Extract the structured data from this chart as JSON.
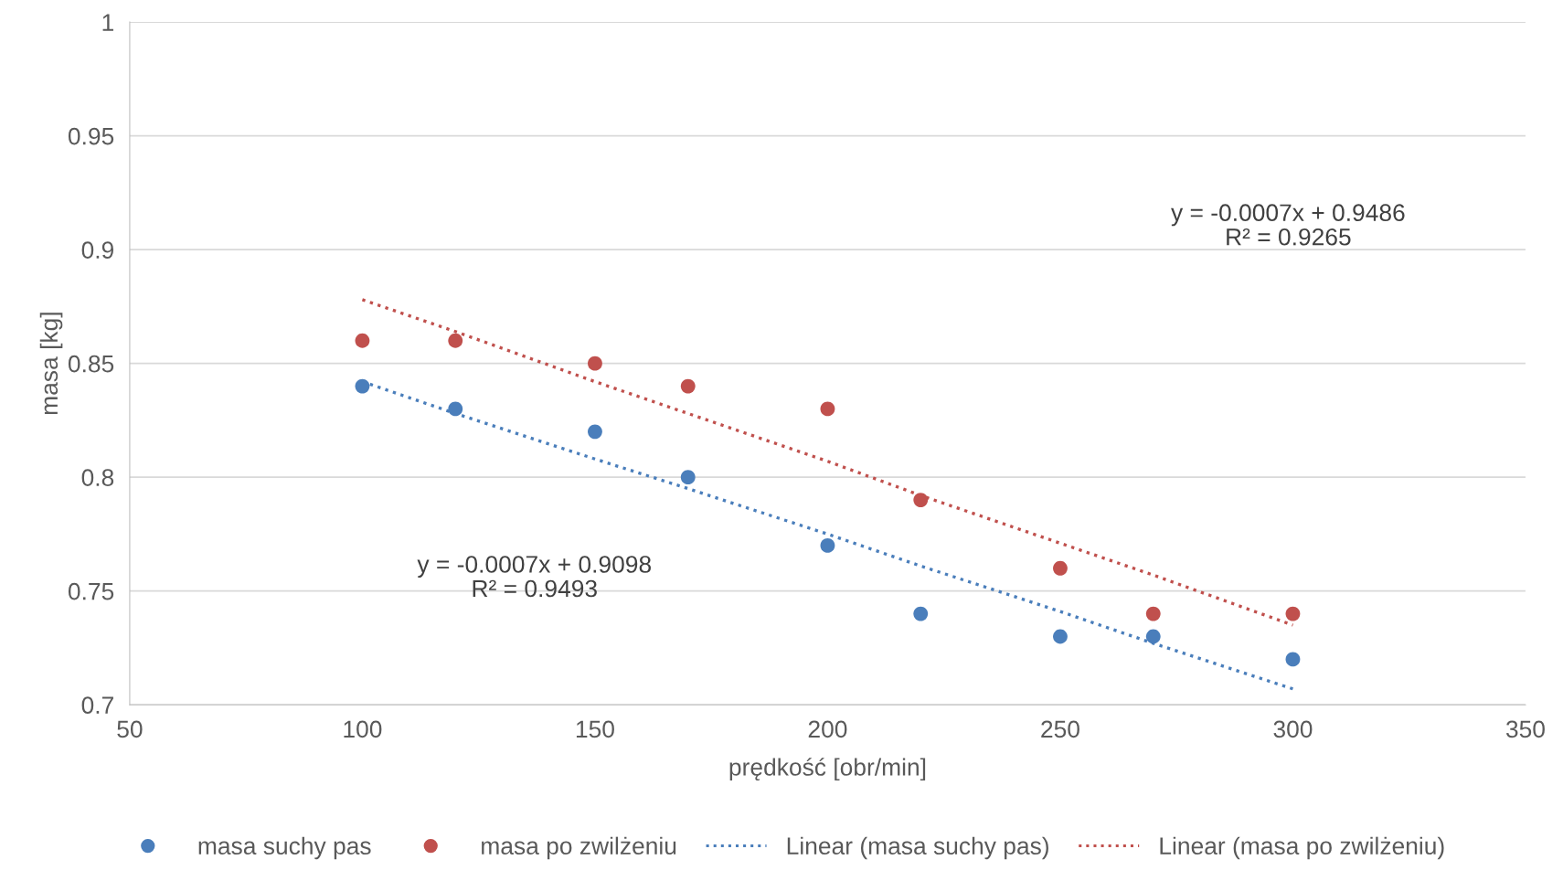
{
  "chart_data": {
    "type": "scatter",
    "xlabel": "prędkość [obr/min]",
    "ylabel": "masa [kg]",
    "x": [
      100,
      120,
      150,
      170,
      200,
      220,
      250,
      270,
      300
    ],
    "series": [
      {
        "name": "masa suchy pas",
        "color": "#4a7ebb",
        "values": [
          0.84,
          0.83,
          0.82,
          0.8,
          0.77,
          0.74,
          0.73,
          0.73,
          0.72
        ]
      },
      {
        "name": "masa po zwilżeniu",
        "color": "#c0504d",
        "values": [
          0.86,
          0.86,
          0.85,
          0.84,
          0.83,
          0.79,
          0.76,
          0.74,
          0.74
        ]
      },
      {
        "name": "Linear (masa suchy pas)",
        "type": "line",
        "line_style": "dotted",
        "marker": "none",
        "color": "#4a7ebb",
        "values": [
          0.842,
          0.828,
          0.808,
          0.795,
          0.775,
          0.761,
          0.741,
          0.727,
          0.707
        ]
      },
      {
        "name": "Linear (masa po zwilżeniu)",
        "type": "line",
        "line_style": "dotted",
        "marker": "none",
        "color": "#c0504d",
        "values": [
          0.878,
          0.864,
          0.842,
          0.828,
          0.807,
          0.792,
          0.771,
          0.757,
          0.735
        ]
      }
    ],
    "annotations": [
      "y = -0.0007x + 0.9486\nR² = 0.9265",
      "y = -0.0007x + 0.9098\nR² = 0.9493"
    ],
    "xlim": [
      50,
      350
    ],
    "xticks": [
      50,
      100,
      150,
      200,
      250,
      300,
      350
    ],
    "ylim": [
      0.7,
      1
    ],
    "yticks": [
      0.7,
      0.75,
      0.8,
      0.85,
      0.9,
      0.95,
      1
    ],
    "grid": "y",
    "legend": "bottom",
    "marker": "circle"
  }
}
